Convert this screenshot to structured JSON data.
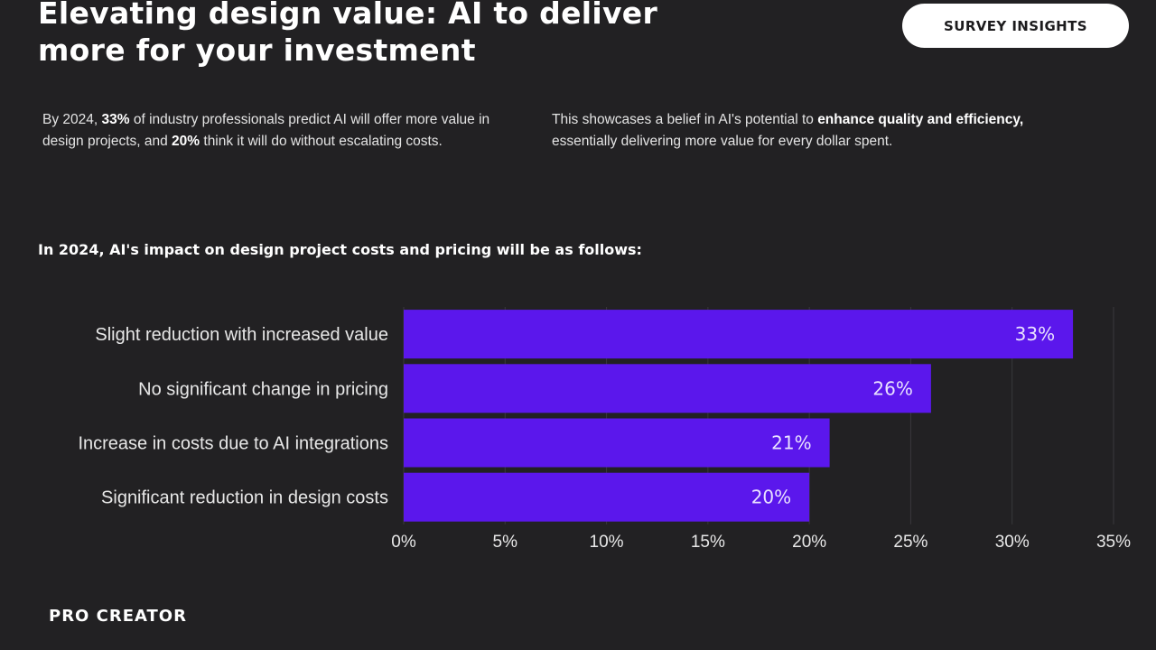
{
  "header": {
    "title_line1": "Elevating design value: AI to deliver",
    "title_line2": "more for your investment",
    "badge": "SURVEY INSIGHTS"
  },
  "intro": {
    "left": [
      {
        "t": "By 2024, ",
        "b": false
      },
      {
        "t": "33%",
        "b": true
      },
      {
        "t": " of industry professionals predict AI will offer more value in design projects, and ",
        "b": false
      },
      {
        "t": "20%",
        "b": true
      },
      {
        "t": " think it will do without escalating costs.",
        "b": false
      }
    ],
    "right": [
      {
        "t": "This showcases a belief in AI's potential to ",
        "b": false
      },
      {
        "t": "enhance quality and efficiency,",
        "b": true
      },
      {
        "t": " essentially delivering more value for every dollar spent.",
        "b": false
      }
    ]
  },
  "chart_heading": "In 2024, AI's impact on design project costs and pricing will be as follows:",
  "chart_data": {
    "type": "bar",
    "orientation": "horizontal",
    "categories": [
      "Slight reduction with increased value",
      "No significant change in pricing",
      "Increase in costs due to AI integrations",
      "Significant reduction in design costs"
    ],
    "values": [
      33,
      26,
      21,
      20
    ],
    "value_labels": [
      "33%",
      "26%",
      "21%",
      "20%"
    ],
    "xlim": [
      0,
      35
    ],
    "xticks": [
      0,
      5,
      10,
      15,
      20,
      25,
      30,
      35
    ],
    "xtick_labels": [
      "0%",
      "5%",
      "10%",
      "15%",
      "20%",
      "25%",
      "30%",
      "35%"
    ],
    "grid": "vertical",
    "bar_color": "#5b17ec",
    "grid_color": "#3a393c"
  },
  "footer": {
    "brand": "PRO CREATOR"
  }
}
